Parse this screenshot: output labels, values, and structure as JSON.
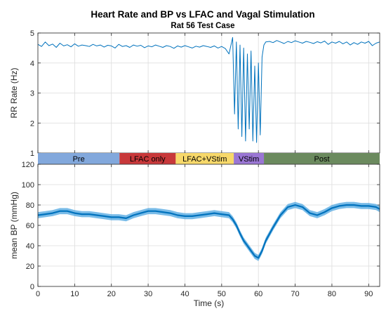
{
  "title": "Heart Rate and BP vs LFAC and Vagal Stimulation",
  "subtitle": "Rat 56 Test Case",
  "colors": {
    "line": "#0072BD",
    "band": "#4DA6E0",
    "grid": "#dcdcdc",
    "axis": "#262626"
  },
  "chart_data": [
    {
      "type": "line",
      "name": "rr-rate-panel",
      "ylabel": "RR Rate (Hz)",
      "xlim": [
        0,
        93
      ],
      "ylim": [
        1,
        5
      ],
      "xticks": [
        0,
        10,
        20,
        30,
        40,
        50,
        60,
        70,
        80,
        90
      ],
      "yticks": [
        1,
        2,
        3,
        4,
        5
      ],
      "grid": true,
      "series": [
        {
          "x": [
            0,
            1,
            2,
            3,
            4,
            5,
            6,
            7,
            8,
            9,
            10,
            11,
            12,
            13,
            14,
            15,
            16,
            17,
            18,
            19,
            20,
            21,
            22,
            23,
            24,
            25,
            26,
            27,
            28,
            29,
            30,
            31,
            32,
            33,
            34,
            35,
            36,
            37,
            38,
            39,
            40,
            41,
            42,
            43,
            44,
            45,
            46,
            47,
            48,
            49,
            50,
            51,
            52,
            53,
            53.5,
            54,
            54.5,
            55,
            55.5,
            56,
            56.5,
            57,
            57.5,
            58,
            58.5,
            59,
            59.5,
            60,
            60.5,
            61,
            61.5,
            62,
            63,
            64,
            65,
            66,
            67,
            68,
            69,
            70,
            71,
            72,
            73,
            74,
            75,
            76,
            77,
            78,
            79,
            80,
            81,
            82,
            83,
            84,
            85,
            86,
            87,
            88,
            89,
            90,
            91,
            92,
            93
          ],
          "y": [
            4.62,
            4.55,
            4.7,
            4.58,
            4.63,
            4.52,
            4.66,
            4.57,
            4.61,
            4.54,
            4.64,
            4.56,
            4.6,
            4.58,
            4.55,
            4.62,
            4.57,
            4.6,
            4.53,
            4.59,
            4.57,
            4.5,
            4.62,
            4.55,
            4.58,
            4.52,
            4.6,
            4.56,
            4.59,
            4.51,
            4.57,
            4.54,
            4.6,
            4.56,
            4.52,
            4.58,
            4.55,
            4.49,
            4.57,
            4.53,
            4.58,
            4.54,
            4.5,
            4.56,
            4.53,
            4.58,
            4.55,
            4.52,
            4.57,
            4.5,
            4.55,
            4.48,
            4.3,
            4.85,
            2.3,
            4.7,
            1.8,
            4.6,
            1.55,
            4.5,
            1.4,
            4.3,
            1.8,
            4.4,
            1.4,
            3.9,
            1.35,
            4.0,
            1.6,
            4.2,
            4.6,
            4.7,
            4.72,
            4.68,
            4.75,
            4.7,
            4.65,
            4.72,
            4.68,
            4.74,
            4.7,
            4.66,
            4.72,
            4.69,
            4.65,
            4.71,
            4.67,
            4.73,
            4.62,
            4.7,
            4.66,
            4.72,
            4.64,
            4.7,
            4.6,
            4.68,
            4.62,
            4.7,
            4.66,
            4.72,
            4.58,
            4.66,
            4.7
          ]
        }
      ]
    },
    {
      "type": "area",
      "name": "mean-bp-panel",
      "xlabel": "Time (s)",
      "ylabel": "mean BP (mmHg)",
      "xlim": [
        0,
        93
      ],
      "ylim": [
        0,
        120
      ],
      "xticks": [
        0,
        10,
        20,
        30,
        40,
        50,
        60,
        70,
        80,
        90
      ],
      "yticks": [
        0,
        20,
        40,
        60,
        80,
        100,
        120
      ],
      "grid": true,
      "series": [
        {
          "x": [
            0,
            2,
            4,
            6,
            8,
            10,
            12,
            14,
            16,
            18,
            20,
            22,
            24,
            26,
            28,
            30,
            32,
            34,
            36,
            38,
            40,
            42,
            44,
            46,
            48,
            50,
            52,
            53,
            54,
            55,
            56,
            57,
            58,
            59,
            60,
            61,
            62,
            64,
            66,
            68,
            70,
            72,
            74,
            76,
            78,
            80,
            82,
            84,
            86,
            88,
            90,
            92,
            93
          ],
          "y": [
            70,
            71,
            72,
            74,
            74,
            72,
            71,
            71,
            70,
            69,
            68,
            68,
            67,
            70,
            72,
            74,
            74,
            73,
            72,
            70,
            69,
            69,
            70,
            71,
            72,
            71,
            70,
            66,
            60,
            52,
            45,
            40,
            35,
            30,
            28,
            35,
            45,
            58,
            70,
            78,
            80,
            78,
            72,
            70,
            73,
            77,
            79,
            80,
            80,
            79,
            79,
            78,
            76
          ],
          "band": 3
        }
      ]
    }
  ],
  "phases": [
    {
      "label": "Pre",
      "start": 0,
      "end": 22.2,
      "color": "#82A8DC"
    },
    {
      "label": "LFAC only",
      "start": 22.2,
      "end": 37.5,
      "color": "#C8383A"
    },
    {
      "label": "LFAC+VStim",
      "start": 37.5,
      "end": 53.3,
      "color": "#F7D86A"
    },
    {
      "label": "VStim",
      "start": 53.3,
      "end": 61.5,
      "color": "#9A76D4"
    },
    {
      "label": "Post",
      "start": 61.5,
      "end": 93,
      "color": "#6B8A5E"
    }
  ]
}
